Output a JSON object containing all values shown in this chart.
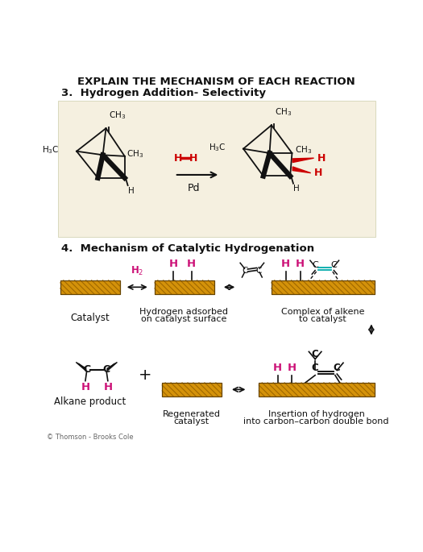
{
  "title": "EXPLAIN THE MECHANISM OF EACH REACTION",
  "section3_title": "3.  Hydrogen Addition- Selectivity",
  "section4_title": "4.  Mechanism of Catalytic Hydrogenation",
  "bg_color": "#f5f0e0",
  "gold_color": "#D4920A",
  "gold_hatch": "#A06800",
  "red_color": "#CC0000",
  "magenta": "#CC1177",
  "cyan_color": "#00AAAA",
  "black": "#111111",
  "white": "#ffffff",
  "copyright": "© Thomson - Brooks Cole"
}
